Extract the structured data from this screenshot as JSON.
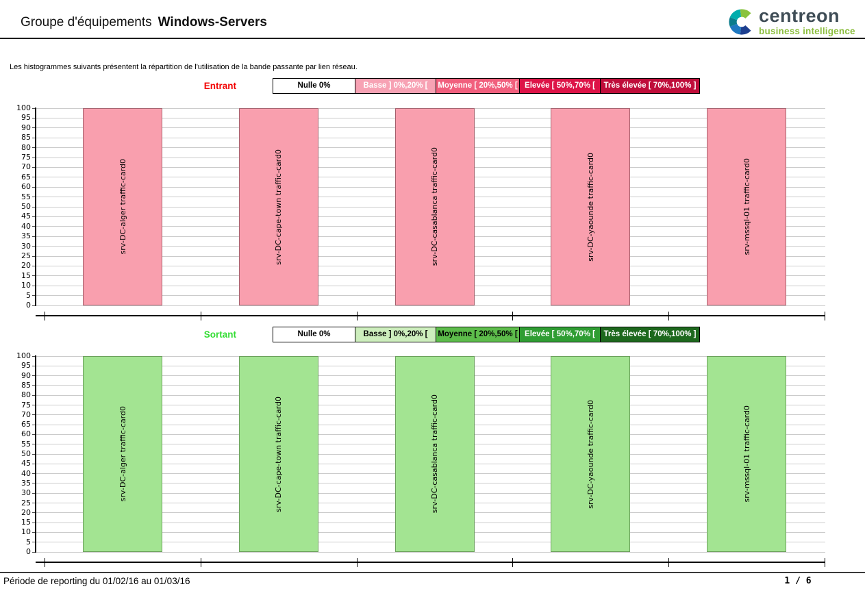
{
  "header": {
    "title_prefix": "Groupe d'équipements",
    "title_name": "Windows-Servers",
    "logo": {
      "brand": "centreon",
      "tagline": "business intelligence"
    }
  },
  "intro": "Les histogrammes suivants présentent la répartition de l'utilisation de la bande passante par lien réseau.",
  "charts": [
    {
      "name": "entrant",
      "direction_label": "Entrant",
      "direction_color": "#f20000",
      "bar_fill": "#f99fae",
      "bar_border": "#a5606c",
      "legend": [
        {
          "label": "Nulle 0%",
          "bg": "#ffffff",
          "fg": "#000000"
        },
        {
          "label": "Basse ] 0%,20% [",
          "bg": "#f7a2b4",
          "fg": "#ffffff"
        },
        {
          "label": "Moyenne [ 20%,50% [",
          "bg": "#f15f7d",
          "fg": "#ffffff"
        },
        {
          "label": "Elevée [ 50%,70% [",
          "bg": "#dd1347",
          "fg": "#ffffff"
        },
        {
          "label": "Très élevée [ 70%,100% ]",
          "bg": "#bf0d3a",
          "fg": "#ffffff"
        }
      ]
    },
    {
      "name": "sortant",
      "direction_label": "Sortant",
      "direction_color": "#33dd33",
      "bar_fill": "#a3e492",
      "bar_border": "#6ba05c",
      "legend": [
        {
          "label": "Nulle 0%",
          "bg": "#ffffff",
          "fg": "#000000"
        },
        {
          "label": "Basse ] 0%,20% [",
          "bg": "#cdeebd",
          "fg": "#000000"
        },
        {
          "label": "Moyenne [ 20%,50% [",
          "bg": "#5dbc4b",
          "fg": "#000000"
        },
        {
          "label": "Elevée [ 50%,70% [",
          "bg": "#2f9d33",
          "fg": "#ffffff"
        },
        {
          "label": "Très élevée [ 70%,100% ]",
          "bg": "#1d681d",
          "fg": "#ffffff"
        }
      ]
    }
  ],
  "chart_data": [
    {
      "type": "bar",
      "title": "Entrant",
      "categories": [
        "srv-DC-alger traffic-card0",
        "srv-DC-cape-town traffic-card0",
        "srv-DC-casablanca traffic-card0",
        "srv-DC-yaounde traffic-card0",
        "srv-mssql-01 traffic-card0"
      ],
      "values": [
        100,
        100,
        100,
        100,
        100
      ],
      "xlabel": "",
      "ylabel": "",
      "ylim": [
        0,
        100
      ],
      "ytick_step": 5,
      "grid": true,
      "legend_position": "top",
      "bar_color": "#f99fae"
    },
    {
      "type": "bar",
      "title": "Sortant",
      "categories": [
        "srv-DC-alger traffic-card0",
        "srv-DC-cape-town traffic-card0",
        "srv-DC-casablanca traffic-card0",
        "srv-DC-yaounde traffic-card0",
        "srv-mssql-01 traffic-card0"
      ],
      "values": [
        100,
        100,
        100,
        100,
        100
      ],
      "xlabel": "",
      "ylabel": "",
      "ylim": [
        0,
        100
      ],
      "ytick_step": 5,
      "grid": true,
      "legend_position": "top",
      "bar_color": "#a3e492"
    }
  ],
  "footer": {
    "period": "Période de reporting du 01/02/16 au 01/03/16",
    "page": "1 / 6"
  }
}
